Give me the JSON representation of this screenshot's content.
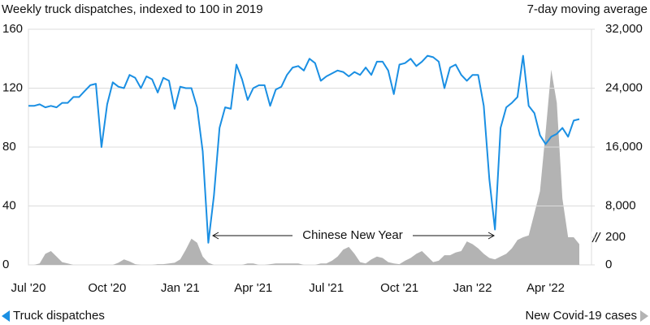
{
  "chart_data": {
    "type": "line",
    "title": "Weekly truck dispatches, indexed to 100 in 2019",
    "subtitle": "7-day moving average",
    "annotation": "Chinese New Year",
    "categories": [
      "Jul '20",
      null,
      null,
      null,
      null,
      null,
      null,
      null,
      null,
      null,
      null,
      null,
      null,
      null,
      "Oct '20",
      null,
      null,
      null,
      null,
      null,
      null,
      null,
      null,
      null,
      null,
      null,
      null,
      "Jan '21",
      null,
      null,
      null,
      null,
      null,
      null,
      null,
      null,
      null,
      null,
      null,
      null,
      "Apr '21",
      null,
      null,
      null,
      null,
      null,
      null,
      null,
      null,
      null,
      null,
      null,
      null,
      "Jul '21",
      null,
      null,
      null,
      null,
      null,
      null,
      null,
      null,
      null,
      null,
      null,
      null,
      "Oct '21",
      null,
      null,
      null,
      null,
      null,
      null,
      null,
      null,
      null,
      null,
      null,
      null,
      "Jan '22",
      null,
      null,
      null,
      null,
      null,
      null,
      null,
      null,
      null,
      null,
      null,
      null,
      "Apr '22",
      null,
      null,
      null,
      null,
      null,
      null
    ],
    "series": [
      {
        "name": "Truck dispatches",
        "color": "#1a8fe3",
        "values": [
          108,
          108,
          109,
          107,
          108,
          107,
          110,
          110,
          114,
          114,
          118,
          122,
          123,
          80,
          109,
          124,
          121,
          120,
          129,
          127,
          120,
          128,
          126,
          117,
          127,
          125,
          106,
          121,
          120,
          120,
          107,
          77,
          15,
          47,
          93,
          107,
          106,
          136,
          126,
          112,
          120,
          122,
          122,
          108,
          119,
          121,
          129,
          134,
          135,
          132,
          140,
          137,
          125,
          128,
          130,
          132,
          131,
          128,
          131,
          129,
          134,
          129,
          138,
          138,
          132,
          116,
          136,
          137,
          140,
          135,
          138,
          142,
          141,
          138,
          120,
          134,
          136,
          129,
          125,
          129,
          129,
          108,
          58,
          24,
          93,
          107,
          110,
          114,
          142,
          108,
          103,
          88,
          82,
          87,
          89,
          93,
          87,
          98,
          99
        ]
      },
      {
        "name": "New Covid-19 cases",
        "color": "#b3b3b3",
        "axis": "y2",
        "values": [
          0,
          0,
          10,
          80,
          100,
          60,
          20,
          10,
          0,
          0,
          0,
          0,
          0,
          0,
          0,
          0,
          15,
          40,
          25,
          5,
          0,
          0,
          0,
          5,
          5,
          10,
          15,
          40,
          110,
          190,
          160,
          60,
          15,
          0,
          0,
          0,
          0,
          0,
          0,
          10,
          10,
          0,
          0,
          5,
          10,
          10,
          10,
          10,
          10,
          0,
          0,
          0,
          10,
          10,
          30,
          60,
          110,
          130,
          80,
          20,
          10,
          40,
          60,
          50,
          20,
          10,
          5,
          30,
          50,
          80,
          100,
          60,
          20,
          30,
          70,
          70,
          90,
          100,
          170,
          150,
          120,
          80,
          50,
          40,
          60,
          80,
          120,
          180,
          1500,
          4000,
          7000,
          10000,
          18000,
          26500,
          22000,
          9000,
          3500,
          800,
          150
        ]
      }
    ],
    "ylim": [
      0,
      160
    ],
    "yticks": [
      0,
      40,
      80,
      120,
      160
    ],
    "y2lim": [
      0,
      32000
    ],
    "y2break": 200,
    "y2ticks": [
      0,
      200,
      {
        "value": 8000,
        "label": "8,000"
      },
      {
        "value": 16000,
        "label": "16,000"
      },
      {
        "value": 24000,
        "label": "24,000"
      },
      {
        "value": 32000,
        "label": "32,000"
      }
    ],
    "grid": true
  }
}
